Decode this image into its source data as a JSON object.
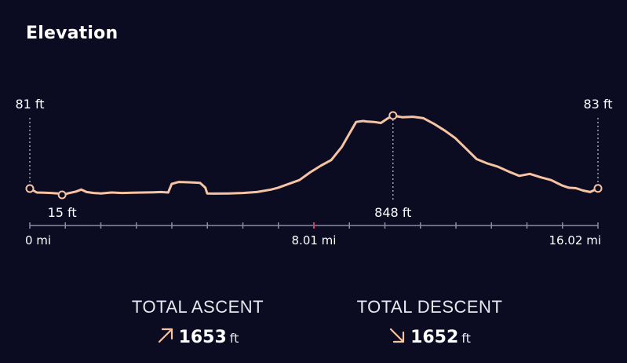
{
  "title": "Elevation",
  "chart_data": {
    "type": "line",
    "title": "Elevation",
    "xlabel": "",
    "ylabel": "",
    "x_unit": "mi",
    "y_unit": "ft",
    "xlim": [
      0,
      16.02
    ],
    "x_ticks": [
      "0 mi",
      "8.01 mi",
      "16.02 mi"
    ],
    "line_color": "#f6c4a2",
    "markers": [
      {
        "label": "81 ft",
        "x": 0,
        "y": 81
      },
      {
        "label": "15 ft",
        "x": 0.91,
        "y": 15
      },
      {
        "label": "848 ft",
        "x": 10.24,
        "y": 848
      },
      {
        "label": "83 ft",
        "x": 16.02,
        "y": 83
      }
    ],
    "series": [
      {
        "x": [
          0,
          0.2,
          0.4,
          0.6,
          0.8,
          0.91,
          1.1,
          1.3,
          1.45,
          1.6,
          1.8,
          2.0,
          2.3,
          2.6,
          2.9,
          3.2,
          3.5,
          3.7,
          3.9,
          4.0,
          4.2,
          4.4,
          4.6,
          4.8,
          4.95,
          5.0,
          5.2,
          5.6,
          6.0,
          6.4,
          6.8,
          7.0,
          7.3,
          7.6,
          7.9,
          8.2,
          8.5,
          8.8,
          9.0,
          9.2,
          9.4,
          9.5,
          9.7,
          9.9,
          10.1,
          10.24,
          10.5,
          10.8,
          11.1,
          11.4,
          11.7,
          12.0,
          12.3,
          12.6,
          12.9,
          13.2,
          13.5,
          13.8,
          14.1,
          14.4,
          14.7,
          15.0,
          15.2,
          15.4,
          15.6,
          15.8,
          16.02
        ],
        "y": [
          81,
          40,
          38,
          35,
          30,
          15,
          33,
          50,
          70,
          45,
          35,
          30,
          40,
          35,
          38,
          40,
          42,
          45,
          40,
          130,
          150,
          148,
          145,
          140,
          90,
          30,
          28,
          30,
          35,
          45,
          70,
          90,
          130,
          170,
          250,
          320,
          380,
          520,
          650,
          780,
          790,
          785,
          780,
          770,
          820,
          848,
          830,
          835,
          820,
          760,
          690,
          610,
          500,
          390,
          345,
          310,
          260,
          215,
          235,
          200,
          170,
          115,
          90,
          85,
          60,
          45,
          83
        ]
      }
    ]
  },
  "stats": {
    "ascent_label": "TOTAL ASCENT",
    "ascent_value": "1653",
    "ascent_unit": "ft",
    "ascent_icon": "arrow-up-right-icon",
    "descent_label": "TOTAL DESCENT",
    "descent_value": "1652",
    "descent_unit": "ft",
    "descent_icon": "arrow-down-right-icon",
    "arrow_color": "#f6c4a2"
  }
}
